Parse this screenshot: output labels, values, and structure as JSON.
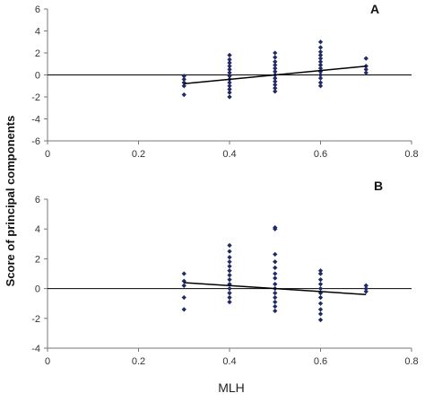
{
  "chart_data": {
    "ylabel": "Score of principal components",
    "xlabel": "MLH",
    "panels": [
      {
        "label": "A",
        "type": "scatter",
        "xlim": [
          0,
          0.8
        ],
        "ylim": [
          -6,
          6
        ],
        "xticks": [
          0,
          0.2,
          0.4,
          0.6,
          0.8
        ],
        "yticks": [
          -6,
          -4,
          -2,
          0,
          2,
          4,
          6
        ],
        "trendline": {
          "x": [
            0.3,
            0.7
          ],
          "y": [
            -0.8,
            0.8
          ]
        },
        "points": [
          [
            0.3,
            -1.8
          ],
          [
            0.3,
            -1.0
          ],
          [
            0.3,
            -0.7
          ],
          [
            0.3,
            -0.4
          ],
          [
            0.3,
            -0.1
          ],
          [
            0.4,
            -2.0
          ],
          [
            0.4,
            -1.6
          ],
          [
            0.4,
            -1.3
          ],
          [
            0.4,
            -1.0
          ],
          [
            0.4,
            -0.7
          ],
          [
            0.4,
            -0.4
          ],
          [
            0.4,
            -0.1
          ],
          [
            0.4,
            0.2
          ],
          [
            0.4,
            0.5
          ],
          [
            0.4,
            0.8
          ],
          [
            0.4,
            1.1
          ],
          [
            0.4,
            1.4
          ],
          [
            0.4,
            1.8
          ],
          [
            0.5,
            -1.5
          ],
          [
            0.5,
            -1.2
          ],
          [
            0.5,
            -0.9
          ],
          [
            0.5,
            -0.6
          ],
          [
            0.5,
            -0.3
          ],
          [
            0.5,
            0.0
          ],
          [
            0.5,
            0.3
          ],
          [
            0.5,
            0.6
          ],
          [
            0.5,
            0.9
          ],
          [
            0.5,
            1.2
          ],
          [
            0.5,
            1.6
          ],
          [
            0.5,
            2.0
          ],
          [
            0.6,
            -1.0
          ],
          [
            0.6,
            -0.7
          ],
          [
            0.6,
            -0.3
          ],
          [
            0.6,
            0.0
          ],
          [
            0.6,
            0.3
          ],
          [
            0.6,
            0.6
          ],
          [
            0.6,
            0.9
          ],
          [
            0.6,
            1.2
          ],
          [
            0.6,
            1.5
          ],
          [
            0.6,
            1.8
          ],
          [
            0.6,
            2.1
          ],
          [
            0.6,
            2.5
          ],
          [
            0.6,
            3.0
          ],
          [
            0.7,
            0.2
          ],
          [
            0.7,
            0.5
          ],
          [
            0.7,
            0.8
          ],
          [
            0.7,
            1.5
          ]
        ]
      },
      {
        "label": "B",
        "type": "scatter",
        "xlim": [
          0,
          0.8
        ],
        "ylim": [
          -4,
          6
        ],
        "xticks": [
          0,
          0.2,
          0.4,
          0.6,
          0.8
        ],
        "yticks": [
          -4,
          -2,
          0,
          2,
          4,
          6
        ],
        "trendline": {
          "x": [
            0.3,
            0.7
          ],
          "y": [
            0.4,
            -0.4
          ]
        },
        "points": [
          [
            0.3,
            -1.4
          ],
          [
            0.3,
            -0.6
          ],
          [
            0.3,
            0.2
          ],
          [
            0.3,
            0.5
          ],
          [
            0.3,
            1.0
          ],
          [
            0.4,
            -0.9
          ],
          [
            0.4,
            -0.6
          ],
          [
            0.4,
            -0.3
          ],
          [
            0.4,
            0.0
          ],
          [
            0.4,
            0.3
          ],
          [
            0.4,
            0.6
          ],
          [
            0.4,
            0.9
          ],
          [
            0.4,
            1.2
          ],
          [
            0.4,
            1.5
          ],
          [
            0.4,
            1.8
          ],
          [
            0.4,
            2.1
          ],
          [
            0.4,
            2.5
          ],
          [
            0.4,
            2.9
          ],
          [
            0.5,
            -1.5
          ],
          [
            0.5,
            -1.2
          ],
          [
            0.5,
            -0.9
          ],
          [
            0.5,
            -0.6
          ],
          [
            0.5,
            -0.3
          ],
          [
            0.5,
            0.0
          ],
          [
            0.5,
            0.3
          ],
          [
            0.5,
            0.7
          ],
          [
            0.5,
            1.0
          ],
          [
            0.5,
            1.4
          ],
          [
            0.5,
            1.8
          ],
          [
            0.5,
            2.3
          ],
          [
            0.5,
            4.0
          ],
          [
            0.5,
            4.1
          ],
          [
            0.6,
            -2.1
          ],
          [
            0.6,
            -1.7
          ],
          [
            0.6,
            -1.4
          ],
          [
            0.6,
            -1.0
          ],
          [
            0.6,
            -0.6
          ],
          [
            0.6,
            -0.3
          ],
          [
            0.6,
            0.0
          ],
          [
            0.6,
            0.3
          ],
          [
            0.6,
            0.6
          ],
          [
            0.6,
            1.0
          ],
          [
            0.6,
            1.2
          ],
          [
            0.7,
            -0.2
          ],
          [
            0.7,
            0.0
          ],
          [
            0.7,
            0.2
          ]
        ]
      }
    ]
  }
}
